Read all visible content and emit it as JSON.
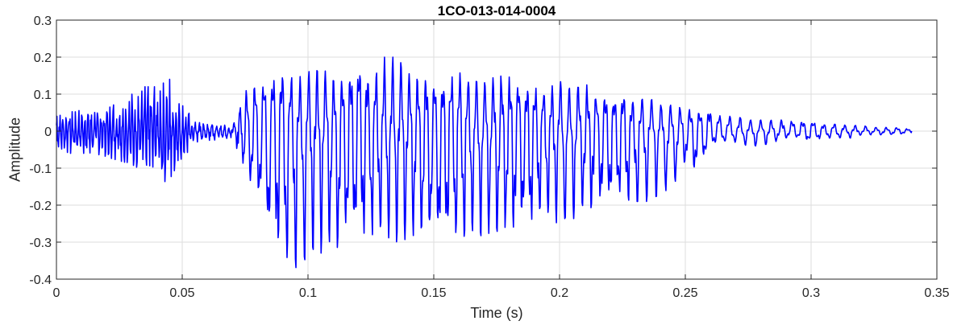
{
  "chart_data": {
    "type": "line",
    "title": "1CO-013-014-0004",
    "xlabel": "Time (s)",
    "ylabel": "Amplitude",
    "xlim": [
      0,
      0.35
    ],
    "ylim": [
      -0.4,
      0.3
    ],
    "x_ticks": [
      0,
      0.05,
      0.1,
      0.15,
      0.2,
      0.25,
      0.3,
      0.35
    ],
    "x_tick_labels": [
      "0",
      "0.05",
      "0.1",
      "0.15",
      "0.2",
      "0.25",
      "0.3",
      "0.35"
    ],
    "y_ticks": [
      -0.4,
      -0.3,
      -0.2,
      -0.1,
      0,
      0.1,
      0.2,
      0.3
    ],
    "y_tick_labels": [
      "-0.4",
      "-0.3",
      "-0.2",
      "-0.1",
      "0",
      "0.1",
      "0.2",
      "0.3"
    ],
    "grid": true,
    "line_color": "#0000ff",
    "series": [
      {
        "x": [
          0.0,
          0.005,
          0.01,
          0.015,
          0.02,
          0.025,
          0.03,
          0.035,
          0.04,
          0.045,
          0.05,
          0.055,
          0.06,
          0.065,
          0.07,
          0.075,
          0.08,
          0.085,
          0.09,
          0.095,
          0.1,
          0.105,
          0.11,
          0.115,
          0.12,
          0.125,
          0.13,
          0.135,
          0.14,
          0.145,
          0.15,
          0.155,
          0.16,
          0.165,
          0.17,
          0.175,
          0.18,
          0.185,
          0.19,
          0.195,
          0.2,
          0.205,
          0.21,
          0.215,
          0.22,
          0.225,
          0.23,
          0.235,
          0.24,
          0.245,
          0.25,
          0.255,
          0.26,
          0.265,
          0.27,
          0.275,
          0.28,
          0.285,
          0.29,
          0.295,
          0.3,
          0.305,
          0.31,
          0.315,
          0.32,
          0.325,
          0.33,
          0.335,
          0.34
        ],
        "upper": [
          0.04,
          0.05,
          0.06,
          0.05,
          0.06,
          0.08,
          0.1,
          0.12,
          0.12,
          0.14,
          0.07,
          0.03,
          0.02,
          0.02,
          0.01,
          0.11,
          0.14,
          0.16,
          0.17,
          0.14,
          0.16,
          0.17,
          0.15,
          0.17,
          0.19,
          0.15,
          0.2,
          0.2,
          0.16,
          0.14,
          0.15,
          0.15,
          0.16,
          0.14,
          0.13,
          0.15,
          0.15,
          0.13,
          0.13,
          0.11,
          0.14,
          0.12,
          0.13,
          0.1,
          0.1,
          0.11,
          0.08,
          0.1,
          0.07,
          0.07,
          0.06,
          0.06,
          0.06,
          0.04,
          0.04,
          0.03,
          0.03,
          0.03,
          0.03,
          0.03,
          0.03,
          0.02,
          0.02,
          0.015,
          0.015,
          0.01,
          0.01,
          0.01,
          0.005
        ],
        "lower": [
          -0.04,
          -0.06,
          -0.06,
          -0.06,
          -0.07,
          -0.08,
          -0.09,
          -0.11,
          -0.13,
          -0.14,
          -0.07,
          -0.04,
          -0.03,
          -0.02,
          -0.02,
          -0.1,
          -0.18,
          -0.29,
          -0.36,
          -0.37,
          -0.34,
          -0.33,
          -0.32,
          -0.31,
          -0.31,
          -0.29,
          -0.28,
          -0.3,
          -0.29,
          -0.29,
          -0.3,
          -0.31,
          -0.3,
          -0.29,
          -0.28,
          -0.27,
          -0.29,
          -0.26,
          -0.26,
          -0.24,
          -0.25,
          -0.24,
          -0.21,
          -0.21,
          -0.2,
          -0.2,
          -0.19,
          -0.19,
          -0.17,
          -0.15,
          -0.09,
          -0.11,
          -0.04,
          -0.03,
          -0.03,
          -0.04,
          -0.04,
          -0.03,
          -0.02,
          -0.02,
          -0.03,
          -0.02,
          -0.02,
          -0.02,
          -0.01,
          -0.01,
          -0.01,
          -0.01,
          -0.005
        ],
        "cycles_per_step": [
          4,
          4,
          4,
          4,
          4,
          4,
          4,
          4,
          4,
          4,
          4,
          3,
          3,
          3,
          2,
          1.5,
          1.4,
          1.4,
          1.4,
          1.4,
          1.5,
          1.5,
          1.5,
          1.5,
          1.5,
          1.5,
          1.5,
          1.5,
          1.5,
          1.5,
          1.5,
          1.5,
          1.5,
          1.5,
          1.5,
          1.5,
          1.5,
          1.5,
          1.5,
          1.5,
          1.4,
          1.4,
          1.4,
          1.4,
          1.4,
          1.4,
          1.3,
          1.3,
          1.3,
          1.3,
          1.3,
          1.3,
          1.3,
          1.2,
          1.2,
          1.2,
          1.2,
          1.2,
          1.2,
          1.2,
          1.2,
          1.2,
          1.2,
          1.2,
          1.2,
          1.2,
          1.2,
          1.2,
          1.2
        ]
      }
    ]
  }
}
